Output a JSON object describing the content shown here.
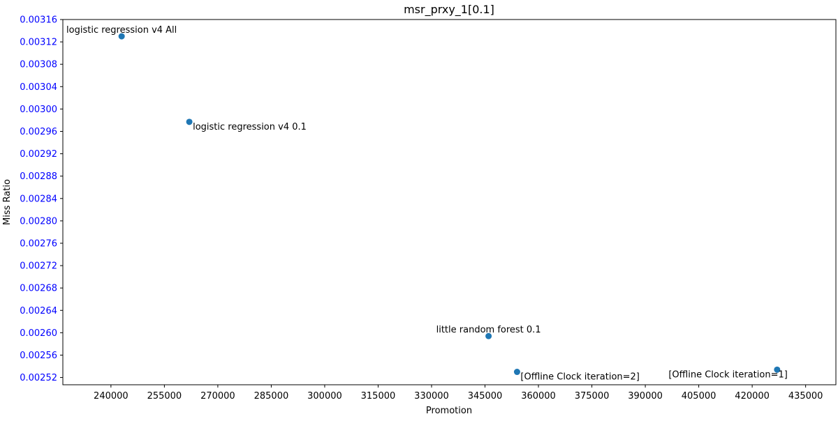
{
  "chart_data": {
    "type": "scatter",
    "title": "msr_prxy_1[0.1]",
    "xlabel": "Promotion",
    "ylabel": "Miss Ratio",
    "xlim": [
      226500,
      443500
    ],
    "ylim": [
      0.002507,
      0.00316
    ],
    "xticks": [
      240000,
      255000,
      270000,
      285000,
      300000,
      315000,
      330000,
      345000,
      360000,
      375000,
      390000,
      405000,
      420000,
      435000
    ],
    "xtick_labels": [
      "240000",
      "255000",
      "270000",
      "285000",
      "300000",
      "315000",
      "330000",
      "345000",
      "360000",
      "375000",
      "390000",
      "405000",
      "420000",
      "435000"
    ],
    "yticks": [
      0.00252,
      0.00256,
      0.0026,
      0.00264,
      0.00268,
      0.00272,
      0.00276,
      0.0028,
      0.00284,
      0.00288,
      0.00292,
      0.00296,
      0.003,
      0.00304,
      0.00308,
      0.00312,
      0.00316
    ],
    "ytick_labels": [
      "0.00252",
      "0.00256",
      "0.00260",
      "0.00264",
      "0.00268",
      "0.00272",
      "0.00276",
      "0.00280",
      "0.00284",
      "0.00288",
      "0.00292",
      "0.00296",
      "0.00300",
      "0.00304",
      "0.00308",
      "0.00312",
      "0.00316"
    ],
    "grid": false,
    "ytick_label_color": "#0000ff",
    "marker_color": "#1f77b4",
    "points": [
      {
        "label": "logistic regression v4 All",
        "x": 243000,
        "y": 0.00313,
        "label_pos": "above"
      },
      {
        "label": "logistic regression v4 0.1",
        "x": 262000,
        "y": 0.002977,
        "label_pos": "below-right"
      },
      {
        "label": "little random forest 0.1",
        "x": 346000,
        "y": 0.002594,
        "label_pos": "above"
      },
      {
        "label": "[Offline Clock iteration=2]",
        "x": 354000,
        "y": 0.00253,
        "label_pos": "below-right"
      },
      {
        "label": "[Offline Clock iteration=1]",
        "x": 427000,
        "y": 0.002534,
        "label_pos": "below-left"
      }
    ]
  }
}
